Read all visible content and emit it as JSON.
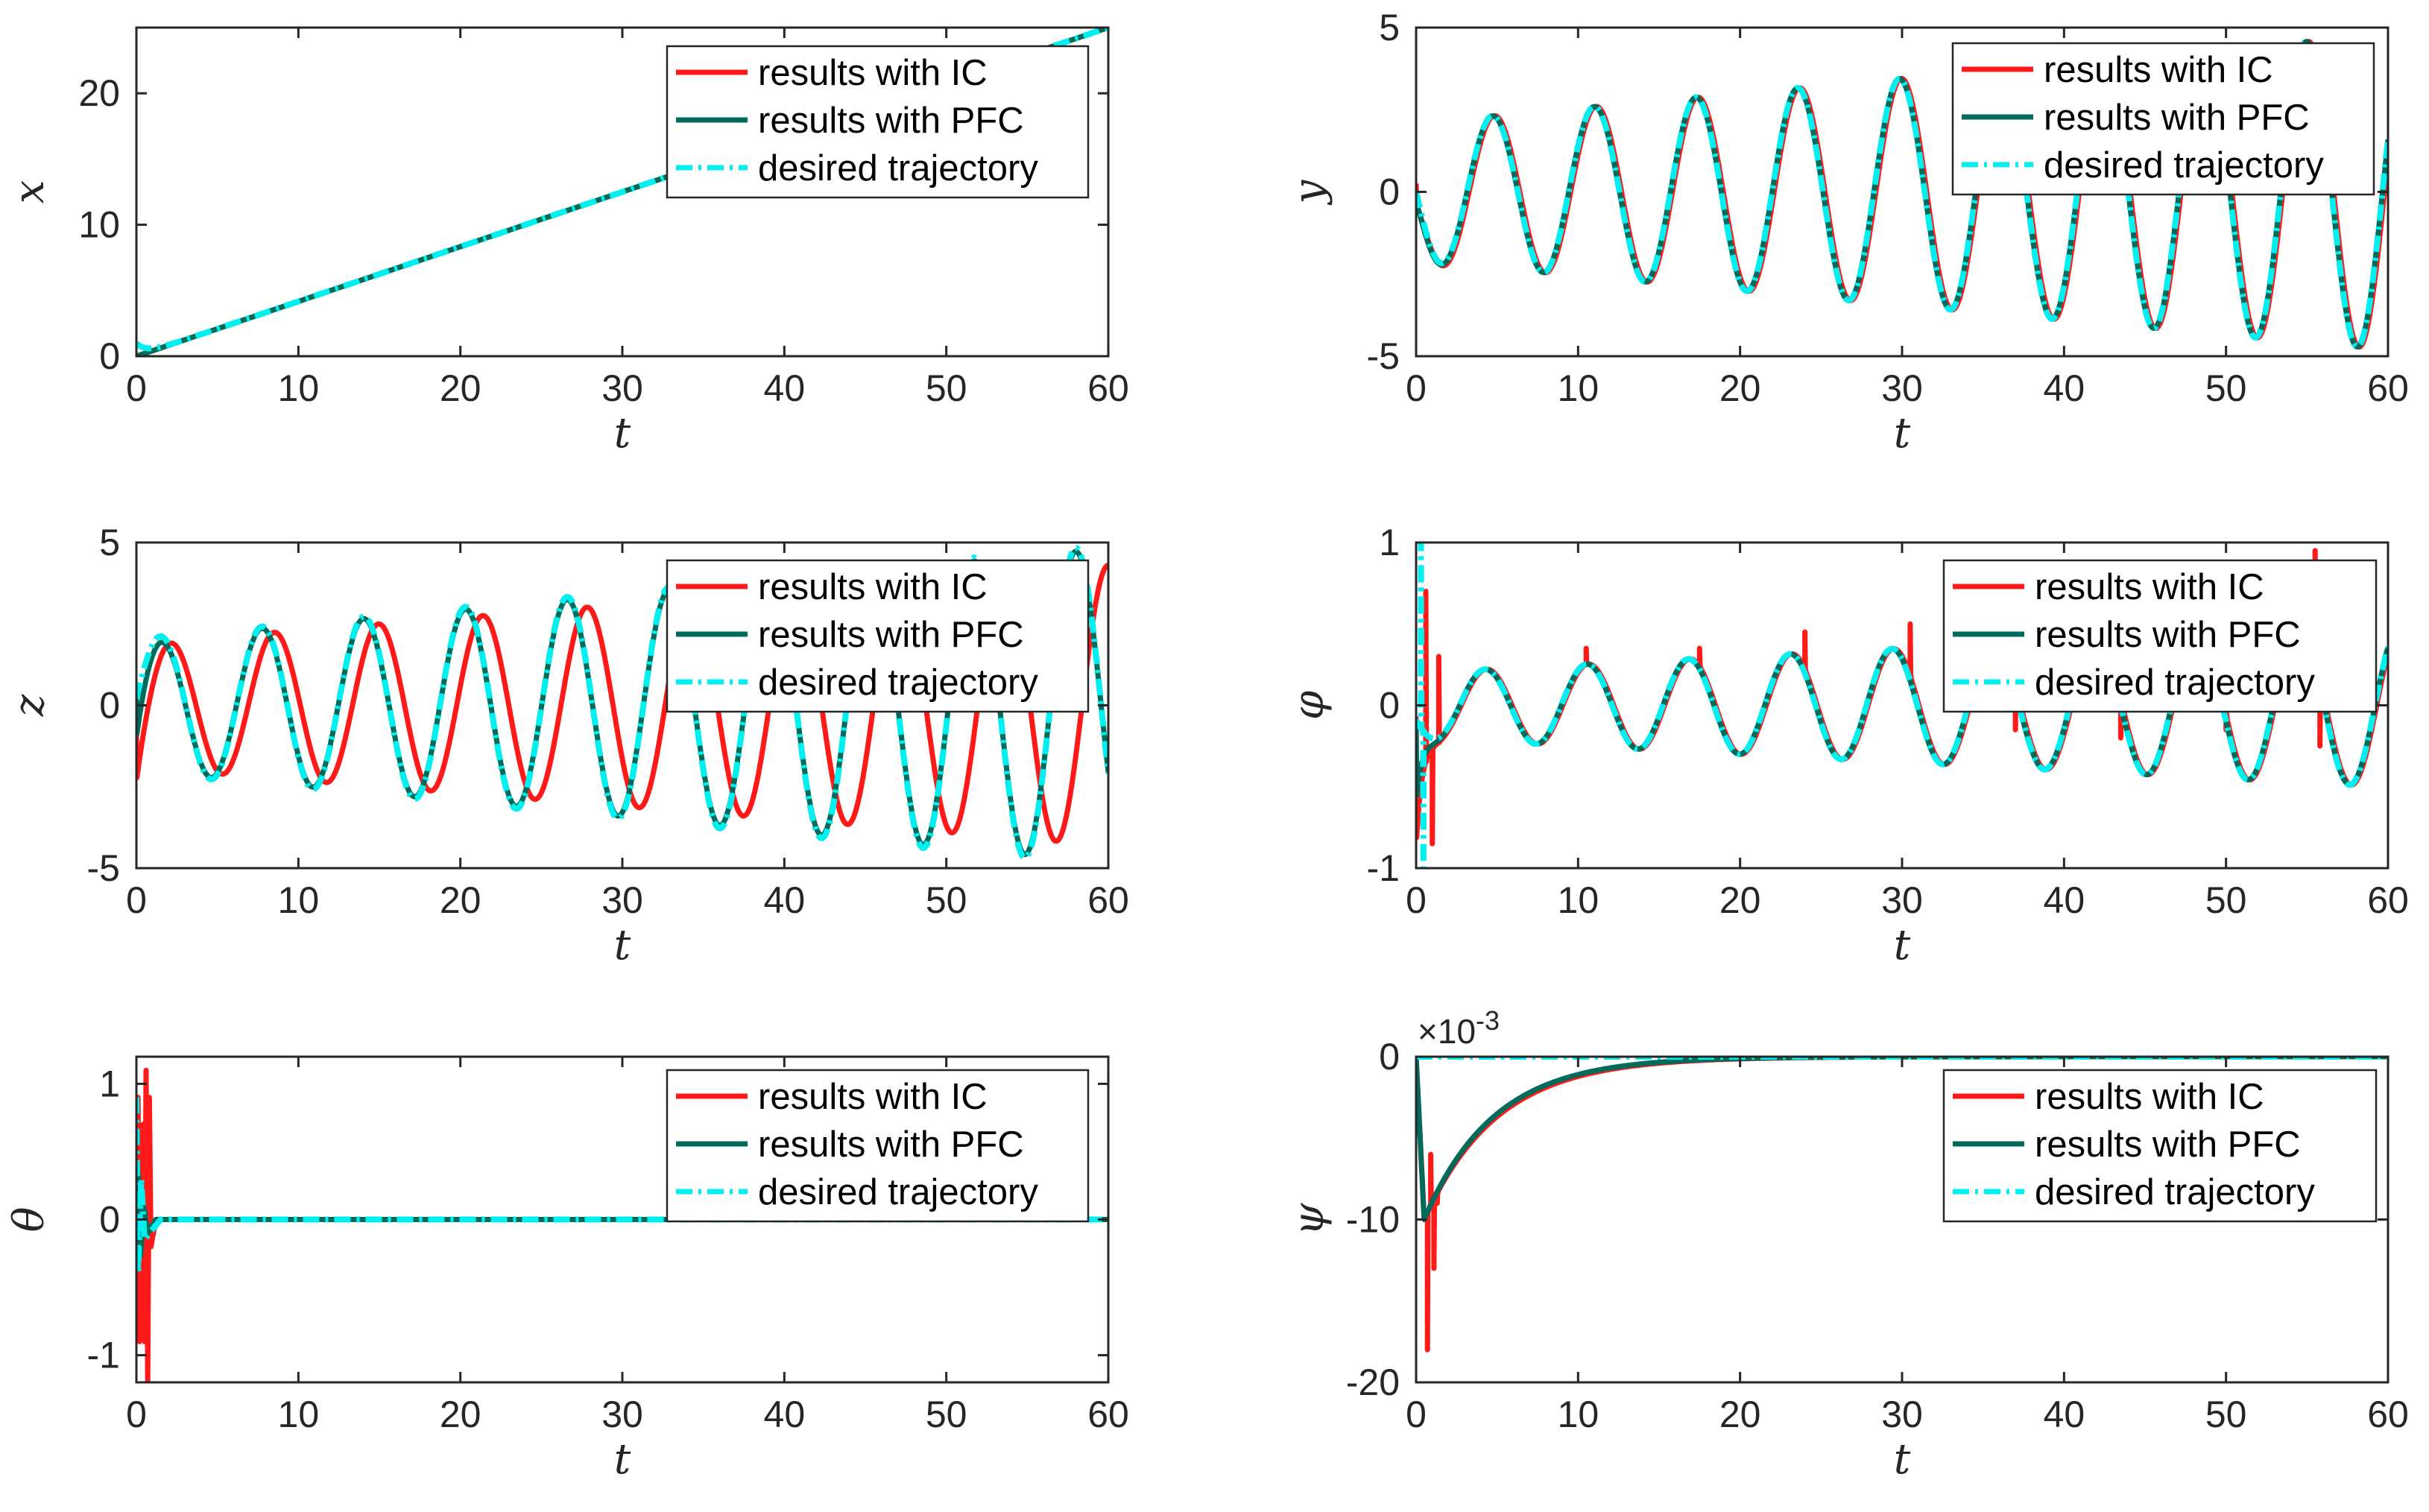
{
  "figure": {
    "colors": {
      "ic": "#ff1a1a",
      "pfc": "#006b5a",
      "desired": "#00f0f0",
      "axis": "#262626"
    }
  },
  "legend": {
    "entries": [
      "results with IC",
      "results with PFC",
      "desired trajectory"
    ]
  },
  "chart_data": [
    {
      "id": "x",
      "type": "line",
      "title": "",
      "xlabel": "t",
      "ylabel": "x",
      "xlim": [
        0,
        60
      ],
      "ylim": [
        0,
        25
      ],
      "xticks": [
        "0",
        "10",
        "20",
        "30",
        "40",
        "50",
        "60"
      ],
      "yticks": [
        "0",
        "10",
        "20"
      ],
      "ytick_values": [
        0,
        10,
        20
      ],
      "legend_position": "top-right",
      "series": [
        {
          "name": "results with IC",
          "role": "ic",
          "signal": {
            "kind": "ramp",
            "slope": 0.4167,
            "start": 0,
            "startDecay": 0.6
          }
        },
        {
          "name": "results with PFC",
          "role": "pfc",
          "signal": {
            "kind": "ramp",
            "slope": 0.4167,
            "start": 0,
            "startDecay": 0.6
          }
        },
        {
          "name": "desired trajectory",
          "role": "desired",
          "signal": {
            "kind": "ramp",
            "slope": 0.4167,
            "start": 1,
            "startDecay": 0.6
          }
        }
      ]
    },
    {
      "id": "y",
      "type": "line",
      "title": "",
      "xlabel": "t",
      "ylabel": "y",
      "xlim": [
        0,
        60
      ],
      "ylim": [
        -5,
        5
      ],
      "xticks": [
        "0",
        "10",
        "20",
        "30",
        "40",
        "50",
        "60"
      ],
      "yticks": [
        "-5",
        "0",
        "5"
      ],
      "ytick_values": [
        -5,
        0,
        5
      ],
      "legend_position": "top-right",
      "series": [
        {
          "name": "results with IC",
          "role": "ic",
          "signal": {
            "kind": "sine",
            "amp0": 2.1,
            "ampSlope": 0.045,
            "period": 6.28,
            "phase": 3.14,
            "lag": 0.06,
            "trans": -0.6,
            "transDecay": 0.8
          }
        },
        {
          "name": "results with PFC",
          "role": "pfc",
          "signal": {
            "kind": "sine",
            "amp0": 2.1,
            "ampSlope": 0.045,
            "period": 6.28,
            "phase": 3.14,
            "lag": 0.0,
            "trans": -0.3,
            "transDecay": 0.8
          }
        },
        {
          "name": "desired trajectory",
          "role": "desired",
          "signal": {
            "kind": "sine",
            "amp0": 2.1,
            "ampSlope": 0.045,
            "period": 6.28,
            "phase": 3.14,
            "lag": 0.0,
            "trans": 0,
            "transDecay": 1
          }
        }
      ]
    },
    {
      "id": "z",
      "type": "line",
      "title": "",
      "xlabel": "t",
      "ylabel": "z",
      "xlim": [
        0,
        60
      ],
      "ylim": [
        -5,
        5
      ],
      "xticks": [
        "0",
        "10",
        "20",
        "30",
        "40",
        "50",
        "60"
      ],
      "yticks": [
        "-5",
        "0",
        "5"
      ],
      "ytick_values": [
        -5,
        0,
        5
      ],
      "legend_position": "top-right",
      "series": [
        {
          "name": "results with IC",
          "role": "ic",
          "signal": {
            "kind": "sine",
            "amp0": 1.9,
            "ampSlope": 0.04,
            "period": 6.28,
            "phase": 0.1,
            "lag": 0.28,
            "lagSlope": 0.012,
            "trans": -1.5,
            "transDecay": 0.7
          }
        },
        {
          "name": "results with PFC",
          "role": "pfc",
          "signal": {
            "kind": "sine",
            "amp0": 2.0,
            "ampSlope": 0.047,
            "period": 6.28,
            "phase": 0.1,
            "lag": 0.0,
            "trans": -1.2,
            "transDecay": 0.7
          }
        },
        {
          "name": "desired trajectory",
          "role": "desired",
          "signal": {
            "kind": "sine",
            "amp0": 2.05,
            "ampSlope": 0.048,
            "period": 6.28,
            "phase": 0.1,
            "lag": 0.0,
            "trans": 0,
            "transDecay": 1
          }
        }
      ]
    },
    {
      "id": "phi",
      "type": "line",
      "title": "",
      "xlabel": "t",
      "ylabel": "φ",
      "xlim": [
        0,
        60
      ],
      "ylim": [
        -1,
        1
      ],
      "xticks": [
        "0",
        "10",
        "20",
        "30",
        "40",
        "50",
        "60"
      ],
      "yticks": [
        "-1",
        "0",
        "1"
      ],
      "ytick_values": [
        -1,
        0,
        1
      ],
      "legend_position": "top-right",
      "series": [
        {
          "name": "results with IC",
          "role": "ic",
          "signal": {
            "kind": "sine",
            "amp0": 0.2,
            "ampSlope": 0.005,
            "period": 6.28,
            "phase": 3.6,
            "lag": 0.05,
            "trans": -0.8,
            "transDecay": 0.4,
            "spikes": [
              [
                0.6,
                0.7
              ],
              [
                1.0,
                -0.85
              ],
              [
                1.4,
                0.3
              ],
              [
                10.5,
                0.35
              ],
              [
                17.5,
                0.35
              ],
              [
                24.0,
                0.45
              ],
              [
                30.5,
                0.5
              ],
              [
                37.0,
                -0.15
              ],
              [
                43.5,
                -0.2
              ],
              [
                50.0,
                -0.15
              ],
              [
                55.5,
                0.95
              ],
              [
                55.8,
                -0.25
              ]
            ]
          }
        },
        {
          "name": "results with PFC",
          "role": "pfc",
          "signal": {
            "kind": "sine",
            "amp0": 0.2,
            "ampSlope": 0.005,
            "period": 6.28,
            "phase": 3.6,
            "lag": 0.0,
            "trans": -0.5,
            "transDecay": 0.4
          }
        },
        {
          "name": "desired trajectory",
          "role": "desired",
          "signal": {
            "kind": "sine",
            "amp0": 0.2,
            "ampSlope": 0.005,
            "period": 6.28,
            "phase": 3.6,
            "lag": 0.0,
            "trans": 0,
            "transDecay": 1,
            "spikes": [
              [
                0.3,
                1.0
              ],
              [
                0.45,
                -1.0
              ]
            ]
          }
        }
      ]
    },
    {
      "id": "theta",
      "type": "line",
      "title": "",
      "xlabel": "t",
      "ylabel": "θ",
      "xlim": [
        0,
        60
      ],
      "ylim": [
        -1.2,
        1.2
      ],
      "xticks": [
        "0",
        "10",
        "20",
        "30",
        "40",
        "50",
        "60"
      ],
      "yticks": [
        "-1",
        "0",
        "1"
      ],
      "ytick_values": [
        -1,
        0,
        1
      ],
      "legend_position": "top-right",
      "series": [
        {
          "name": "results with IC",
          "role": "ic",
          "signal": {
            "kind": "burst",
            "points": [
              [
                0,
                0
              ],
              [
                0.1,
                0.9
              ],
              [
                0.2,
                -0.9
              ],
              [
                0.3,
                0.5
              ],
              [
                0.4,
                0.7
              ],
              [
                0.5,
                -0.9
              ],
              [
                0.6,
                1.1
              ],
              [
                0.7,
                -1.2
              ],
              [
                0.8,
                0.9
              ],
              [
                0.9,
                -0.2
              ],
              [
                1.2,
                0.0
              ]
            ]
          }
        },
        {
          "name": "results with PFC",
          "role": "pfc",
          "signal": {
            "kind": "burst",
            "points": [
              [
                0,
                0
              ],
              [
                0.1,
                0.35
              ],
              [
                0.25,
                -0.3
              ],
              [
                0.45,
                0.1
              ],
              [
                0.7,
                -0.1
              ],
              [
                1.2,
                0.0
              ]
            ]
          }
        },
        {
          "name": "desired trajectory",
          "role": "desired",
          "signal": {
            "kind": "burst",
            "points": [
              [
                0,
                0.9
              ],
              [
                0.1,
                -0.4
              ],
              [
                0.3,
                0.3
              ],
              [
                0.5,
                -0.15
              ],
              [
                0.8,
                -0.1
              ],
              [
                1.5,
                0.0
              ]
            ]
          }
        }
      ]
    },
    {
      "id": "psi",
      "type": "line",
      "title": "",
      "xlabel": "t",
      "ylabel": "ψ",
      "xlim": [
        0,
        60
      ],
      "ylim": [
        -20,
        0
      ],
      "multiplier": {
        "base": "×10",
        "exponent": "-3"
      },
      "xticks": [
        "0",
        "10",
        "20",
        "30",
        "40",
        "50",
        "60"
      ],
      "yticks": [
        "-20",
        "-10",
        "0"
      ],
      "ytick_values": [
        -20,
        -10,
        0
      ],
      "legend_position": "right",
      "series": [
        {
          "name": "results with IC",
          "role": "ic",
          "signal": {
            "kind": "decay",
            "peak": -10,
            "peakTime": 0.5,
            "tau": 4.5,
            "spikes": [
              [
                0.7,
                -18
              ],
              [
                0.9,
                -6
              ],
              [
                1.1,
                -13
              ],
              [
                1.3,
                -9
              ]
            ]
          }
        },
        {
          "name": "results with PFC",
          "role": "pfc",
          "signal": {
            "kind": "decay",
            "peak": -10,
            "peakTime": 0.5,
            "tau": 4.3
          }
        },
        {
          "name": "desired trajectory",
          "role": "desired",
          "signal": {
            "kind": "flat",
            "value": 0
          }
        }
      ]
    }
  ]
}
